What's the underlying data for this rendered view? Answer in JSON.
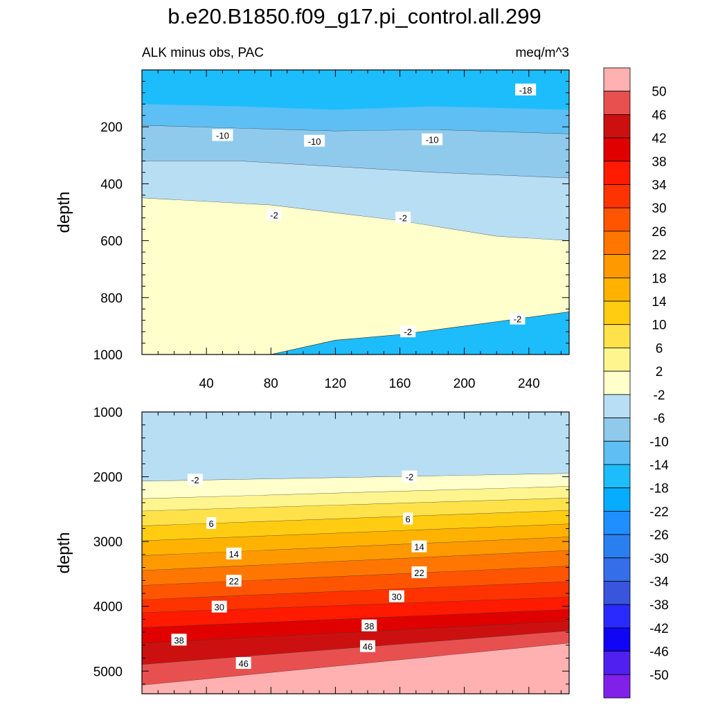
{
  "chart_data": {
    "type": "contour",
    "title": "b.e20.B1850.f09_g17.pi_control.all.299",
    "subtitle_left": "ALK minus obs, PAC",
    "subtitle_right": "meq/m^3",
    "colorbar": {
      "levels": [
        50,
        46,
        42,
        38,
        34,
        30,
        26,
        22,
        18,
        14,
        10,
        6,
        2,
        -2,
        -6,
        -10,
        -14,
        -18,
        -22,
        -26,
        -30,
        -34,
        -38,
        -42,
        -46,
        -50
      ],
      "colors": [
        "#ffb0b0",
        "#e85050",
        "#cc1010",
        "#e00000",
        "#ff1a00",
        "#ff3300",
        "#ff5500",
        "#ff7700",
        "#ff9900",
        "#ffb300",
        "#ffcc11",
        "#ffe24a",
        "#fff58e",
        "#ffffcc",
        "#b8def4",
        "#8fcaed",
        "#5dbff3",
        "#1dbdfb",
        "#05acff",
        "#1f8fff",
        "#2a7ff0",
        "#346ee8",
        "#3a55dd",
        "#2a2aff",
        "#1005f5",
        "#5020f0",
        "#8020e8"
      ]
    },
    "panels": [
      {
        "name": "upper",
        "ylabel": "depth",
        "ylim": [
          0,
          1000
        ],
        "yticks": [
          200,
          400,
          600,
          800,
          1000
        ],
        "xlim": [
          0,
          265
        ],
        "xticks": [
          40,
          80,
          120,
          160,
          200,
          240
        ],
        "bands": [
          {
            "color": "#1dbdfb",
            "top": [
              [
                0,
                0
              ],
              [
                265,
                0
              ]
            ],
            "bottom": [
              [
                0,
                0
              ],
              [
                265,
                0
              ]
            ]
          },
          {
            "color": "#5dbff3",
            "top": [
              [
                0,
                120
              ],
              [
                60,
                128
              ],
              [
                120,
                140
              ],
              [
                180,
                128
              ],
              [
                265,
                140
              ]
            ],
            "bottom": [
              [
                0,
                195
              ],
              [
                60,
                205
              ],
              [
                120,
                215
              ],
              [
                180,
                210
              ],
              [
                265,
                225
              ]
            ]
          },
          {
            "color": "#8fcaed",
            "top": [
              [
                0,
                195
              ],
              [
                60,
                205
              ],
              [
                120,
                215
              ],
              [
                180,
                210
              ],
              [
                265,
                225
              ]
            ],
            "bottom": [
              [
                0,
                320
              ],
              [
                60,
                320
              ],
              [
                120,
                340
              ],
              [
                180,
                360
              ],
              [
                265,
                380
              ]
            ]
          },
          {
            "color": "#b8def4",
            "top": [
              [
                0,
                320
              ],
              [
                60,
                320
              ],
              [
                120,
                340
              ],
              [
                180,
                360
              ],
              [
                265,
                380
              ]
            ],
            "bottom": [
              [
                0,
                450
              ],
              [
                80,
                475
              ],
              [
                160,
                530
              ],
              [
                220,
                585
              ],
              [
                265,
                600
              ]
            ]
          },
          {
            "color": "#ffffcc",
            "top": [
              [
                0,
                450
              ],
              [
                80,
                475
              ],
              [
                160,
                530
              ],
              [
                220,
                585
              ],
              [
                265,
                600
              ]
            ],
            "bottom": [
              [
                0,
                1000
              ],
              [
                80,
                1000
              ],
              [
                120,
                950
              ],
              [
                160,
                930
              ],
              [
                220,
                885
              ],
              [
                265,
                850
              ]
            ]
          }
        ],
        "labels": [
          {
            "text": "-18",
            "x": 238,
            "y": 70
          },
          {
            "text": "-10",
            "x": 50,
            "y": 230
          },
          {
            "text": "-10",
            "x": 107,
            "y": 250
          },
          {
            "text": "-10",
            "x": 180,
            "y": 245
          },
          {
            "text": "-2",
            "x": 82,
            "y": 510
          },
          {
            "text": "-2",
            "x": 162,
            "y": 520
          },
          {
            "text": "-2",
            "x": 165,
            "y": 920
          },
          {
            "text": "-2",
            "x": 233,
            "y": 875
          }
        ]
      },
      {
        "name": "lower",
        "ylabel": "depth",
        "ylim": [
          1000,
          5350
        ],
        "yticks": [
          1000,
          2000,
          3000,
          4000,
          5000
        ],
        "xlim": [
          0,
          265
        ],
        "bands": [
          {
            "color": "#b8def4",
            "top": [
              [
                0,
                1000
              ],
              [
                265,
                1000
              ]
            ],
            "bottom": [
              [
                0,
                2070
              ],
              [
                265,
                1950
              ]
            ]
          },
          {
            "color": "#ffffcc",
            "top": [
              [
                0,
                2070
              ],
              [
                265,
                1950
              ]
            ],
            "bottom": [
              [
                0,
                2340
              ],
              [
                265,
                2150
              ]
            ]
          },
          {
            "color": "#fff58e",
            "top": [
              [
                0,
                2340
              ],
              [
                265,
                2150
              ]
            ],
            "bottom": [
              [
                0,
                2530
              ],
              [
                265,
                2330
              ]
            ]
          },
          {
            "color": "#ffe24a",
            "top": [
              [
                0,
                2530
              ],
              [
                265,
                2330
              ]
            ],
            "bottom": [
              [
                0,
                2760
              ],
              [
                265,
                2520
              ]
            ]
          },
          {
            "color": "#ffcc11",
            "top": [
              [
                0,
                2760
              ],
              [
                265,
                2520
              ]
            ],
            "bottom": [
              [
                0,
                2990
              ],
              [
                265,
                2730
              ]
            ]
          },
          {
            "color": "#ffb300",
            "top": [
              [
                0,
                2990
              ],
              [
                265,
                2730
              ]
            ],
            "bottom": [
              [
                0,
                3220
              ],
              [
                265,
                2930
              ]
            ]
          },
          {
            "color": "#ff9900",
            "top": [
              [
                0,
                3220
              ],
              [
                265,
                2930
              ]
            ],
            "bottom": [
              [
                0,
                3450
              ],
              [
                265,
                3140
              ]
            ]
          },
          {
            "color": "#ff7700",
            "top": [
              [
                0,
                3450
              ],
              [
                265,
                3140
              ]
            ],
            "bottom": [
              [
                0,
                3680
              ],
              [
                265,
                3380
              ]
            ]
          },
          {
            "color": "#ff5500",
            "top": [
              [
                0,
                3680
              ],
              [
                265,
                3380
              ]
            ],
            "bottom": [
              [
                0,
                3900
              ],
              [
                265,
                3620
              ]
            ]
          },
          {
            "color": "#ff3300",
            "top": [
              [
                0,
                3900
              ],
              [
                265,
                3620
              ]
            ],
            "bottom": [
              [
                0,
                4100
              ],
              [
                265,
                3860
              ]
            ]
          },
          {
            "color": "#ff1a00",
            "top": [
              [
                0,
                4100
              ],
              [
                265,
                3860
              ]
            ],
            "bottom": [
              [
                0,
                4330
              ],
              [
                265,
                4050
              ]
            ]
          },
          {
            "color": "#e00000",
            "top": [
              [
                0,
                4330
              ],
              [
                265,
                4050
              ]
            ],
            "bottom": [
              [
                0,
                4570
              ],
              [
                265,
                4230
              ]
            ]
          },
          {
            "color": "#cc1010",
            "top": [
              [
                0,
                4570
              ],
              [
                265,
                4230
              ]
            ],
            "bottom": [
              [
                0,
                4900
              ],
              [
                265,
                4380
              ]
            ]
          },
          {
            "color": "#e85050",
            "top": [
              [
                0,
                4900
              ],
              [
                265,
                4380
              ]
            ],
            "bottom": [
              [
                0,
                5220
              ],
              [
                265,
                4570
              ]
            ]
          },
          {
            "color": "#ffb0b0",
            "top": [
              [
                0,
                5220
              ],
              [
                265,
                4570
              ]
            ],
            "bottom": [
              [
                0,
                5350
              ],
              [
                265,
                5350
              ]
            ]
          }
        ],
        "labels": [
          {
            "text": "-2",
            "x": 33,
            "y": 2050
          },
          {
            "text": "-2",
            "x": 166,
            "y": 2000
          },
          {
            "text": "6",
            "x": 43,
            "y": 2720
          },
          {
            "text": "6",
            "x": 165,
            "y": 2650
          },
          {
            "text": "14",
            "x": 57,
            "y": 3190
          },
          {
            "text": "14",
            "x": 172,
            "y": 3080
          },
          {
            "text": "22",
            "x": 57,
            "y": 3610
          },
          {
            "text": "22",
            "x": 172,
            "y": 3480
          },
          {
            "text": "30",
            "x": 48,
            "y": 4010
          },
          {
            "text": "30",
            "x": 158,
            "y": 3850
          },
          {
            "text": "38",
            "x": 23,
            "y": 4520
          },
          {
            "text": "38",
            "x": 141,
            "y": 4300
          },
          {
            "text": "46",
            "x": 63,
            "y": 4880
          },
          {
            "text": "46",
            "x": 140,
            "y": 4620
          }
        ]
      }
    ]
  }
}
